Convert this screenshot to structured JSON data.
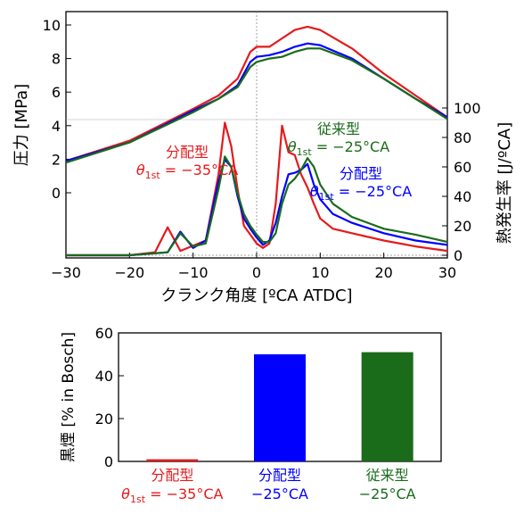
{
  "chart_data": [
    {
      "type": "line",
      "xlabel": "クランク角度 [ºCA ATDC]",
      "ylabel_left": "圧力 [MPa]",
      "ylabel_right": "熱発生率 [J/ºCA]",
      "xlim": [
        -30,
        30
      ],
      "ylim_left": [
        0,
        10
      ],
      "ylim_right": [
        0,
        100
      ],
      "xticks": [
        "-30",
        "-20",
        "-10",
        "0",
        "10",
        "20",
        "30"
      ],
      "yticks_left": [
        "0",
        "2",
        "4",
        "6",
        "8",
        "10"
      ],
      "yticks_right": [
        "0",
        "20",
        "40",
        "60",
        "80",
        "100"
      ],
      "series": [
        {
          "color": "#e41a1c",
          "pressure": {
            "x": [
              -30,
              -20,
              -10,
              -6,
              -3,
              -1,
              0,
              2,
              4,
              6,
              8,
              10,
              15,
              20,
              25,
              30
            ],
            "y": [
              1.9,
              3.1,
              5.0,
              5.8,
              6.8,
              8.4,
              8.7,
              8.7,
              9.2,
              9.7,
              9.9,
              9.7,
              8.6,
              7.1,
              5.8,
              4.5
            ]
          },
          "heat_release": {
            "x": [
              -30,
              -20,
              -16,
              -14,
              -12,
              -8,
              -6,
              -5,
              -4,
              -3,
              -2,
              -1,
              0,
              1,
              2,
              3,
              4,
              5,
              6,
              7,
              8,
              9,
              10,
              12,
              15,
              20,
              25,
              30
            ],
            "y": [
              0,
              0,
              2,
              19,
              3,
              10,
              55,
              90,
              74,
              45,
              20,
              14,
              8,
              5,
              8,
              35,
              88,
              70,
              68,
              55,
              46,
              35,
              25,
              18,
              15,
              10,
              6,
              3
            ]
          }
        },
        {
          "color": "#0000ff",
          "pressure": {
            "x": [
              -30,
              -20,
              -10,
              -6,
              -3,
              -1,
              0,
              2,
              4,
              6,
              8,
              10,
              15,
              20,
              25,
              30
            ],
            "y": [
              1.9,
              3.0,
              4.9,
              5.6,
              6.4,
              7.8,
              8.1,
              8.2,
              8.4,
              8.7,
              8.9,
              8.8,
              8.0,
              6.8,
              5.6,
              4.5
            ]
          },
          "heat_release": {
            "x": [
              -30,
              -20,
              -14,
              -12,
              -10,
              -8,
              -6,
              -5,
              -4,
              -3,
              -2,
              -1,
              0,
              1,
              2,
              3,
              4,
              5,
              6,
              7,
              8,
              9,
              10,
              12,
              15,
              20,
              25,
              30
            ],
            "y": [
              0,
              0,
              2,
              16,
              5,
              10,
              50,
              65,
              60,
              40,
              25,
              18,
              12,
              7,
              10,
              22,
              40,
              55,
              56,
              58,
              62,
              48,
              38,
              28,
              22,
              15,
              10,
              7
            ]
          }
        },
        {
          "color": "#1a6b1a",
          "pressure": {
            "x": [
              -30,
              -20,
              -10,
              -6,
              -3,
              -1,
              0,
              2,
              4,
              6,
              8,
              10,
              15,
              20,
              25,
              30
            ],
            "y": [
              1.8,
              3.0,
              4.8,
              5.6,
              6.3,
              7.5,
              7.8,
              8.0,
              8.1,
              8.4,
              8.6,
              8.6,
              7.9,
              6.8,
              5.6,
              4.4
            ]
          },
          "heat_release": {
            "x": [
              -30,
              -20,
              -14,
              -12,
              -10,
              -8,
              -6,
              -5,
              -4,
              -3,
              -2,
              -1,
              0,
              1,
              2,
              3,
              4,
              5,
              6,
              7,
              8,
              9,
              10,
              12,
              15,
              20,
              25,
              30
            ],
            "y": [
              0,
              0,
              2,
              15,
              6,
              8,
              45,
              67,
              60,
              42,
              28,
              20,
              14,
              9,
              9,
              15,
              35,
              48,
              52,
              58,
              66,
              60,
              48,
              35,
              26,
              18,
              14,
              9
            ]
          }
        }
      ],
      "annotations": [
        {
          "line1": "分配型",
          "theta": "θ",
          "sub": "1st",
          "value": " = −35°CA",
          "color": "#e41a1c"
        },
        {
          "line1": "従来型",
          "theta": "θ",
          "sub": "1st",
          "value": " = −25°CA",
          "color": "#1a6b1a"
        },
        {
          "line1": "分配型",
          "theta": "θ",
          "sub": "1st",
          "value": " = −25°CA",
          "color": "#0000ff"
        }
      ]
    },
    {
      "type": "bar",
      "ylabel": "黒煙 [% in Bosch]",
      "ylim": [
        0,
        60
      ],
      "yticks": [
        "0",
        "20",
        "40",
        "60"
      ],
      "categories": [
        {
          "line1": "分配型",
          "line2_theta": "θ",
          "line2_sub": "1st",
          "line2_value": " = −35°CA",
          "color": "#e41a1c"
        },
        {
          "line1": "分配型",
          "line2_theta": "",
          "line2_sub": "",
          "line2_value": "−25°CA",
          "color": "#0000ff"
        },
        {
          "line1": "従来型",
          "line2_theta": "",
          "line2_sub": "",
          "line2_value": "−25°CA",
          "color": "#1a6b1a"
        }
      ],
      "values": [
        1,
        50,
        51
      ],
      "colors": [
        "#e41a1c",
        "#0000ff",
        "#1a6b1a"
      ]
    }
  ]
}
